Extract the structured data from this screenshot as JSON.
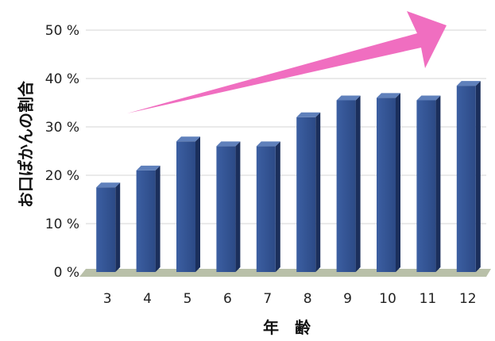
{
  "chart_data": {
    "type": "bar",
    "categories": [
      "3",
      "4",
      "5",
      "6",
      "7",
      "8",
      "9",
      "10",
      "11",
      "12"
    ],
    "values": [
      17.5,
      21,
      27,
      26,
      26,
      32,
      35.5,
      36,
      35.5,
      38.5
    ],
    "title": "",
    "xlabel": "年　齢",
    "ylabel": "お口ぽかんの割合",
    "ylim": [
      0,
      50
    ],
    "yticks": [
      0,
      10,
      20,
      30,
      40,
      50
    ],
    "ytick_labels": [
      "0 %",
      "10 %",
      "20 %",
      "30 %",
      "40 %",
      "50 %"
    ],
    "grid": true,
    "annotation": "upward trend arrow",
    "colors": {
      "bar_front": "#2f4f8e",
      "bar_side": "#1b2f5c",
      "bar_top": "#5f80bb",
      "floor": "#b9c0a9",
      "grid": "#d6d6d6",
      "arrow": "#f06ec0"
    }
  }
}
